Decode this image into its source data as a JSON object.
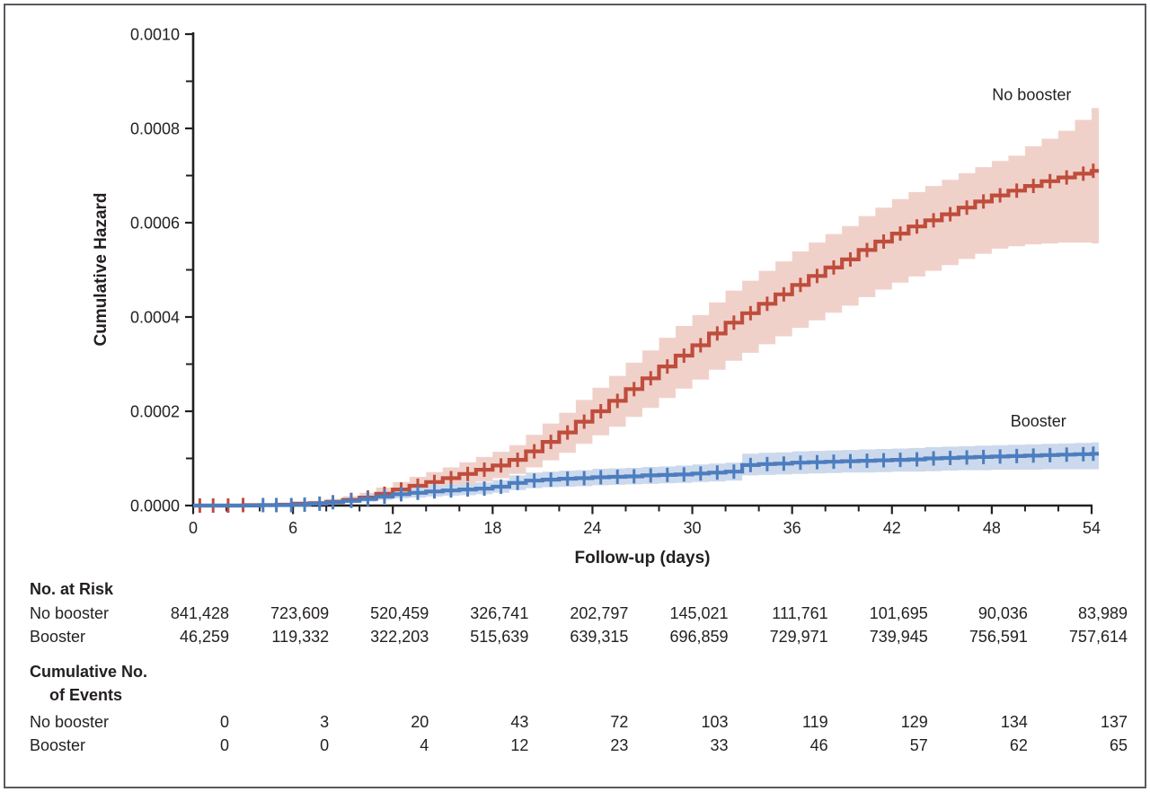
{
  "figure": {
    "y_axis_title": "Cumulative Hazard",
    "x_axis_title": "Follow-up (days)"
  },
  "colors": {
    "no_booster_line": "#bf4d3c",
    "no_booster_band": "#f0d1ca",
    "booster_line": "#4c7dbf",
    "booster_band": "#ccd9ec",
    "axis": "#231f20",
    "frame_border": "#595a5e"
  },
  "chart_data": {
    "type": "line",
    "subtype": "step-cumulative-hazard-with-95CI",
    "title": "",
    "xlabel": "Follow-up (days)",
    "ylabel": "Cumulative Hazard",
    "xlim": [
      0,
      54
    ],
    "ylim": [
      0,
      0.001
    ],
    "grid": false,
    "x_tick_days": [
      0,
      6,
      12,
      18,
      24,
      30,
      36,
      42,
      48,
      54
    ],
    "x_minor_tick_days": [
      2,
      4,
      8,
      10,
      14,
      16,
      20,
      22,
      26,
      28,
      32,
      34,
      38,
      40,
      44,
      46,
      50,
      52
    ],
    "y_tick_values_x1e6": [
      0,
      200,
      400,
      600,
      800,
      1000
    ],
    "y_tick_labels": [
      "0.0000",
      "0.0002",
      "0.0004",
      "0.0006",
      "0.0008",
      "0.0010"
    ],
    "y_minor_tick_values_x1e6": [
      100,
      300,
      500,
      700,
      900
    ],
    "value_unit_note": "hazard values stored as hazard x 1e-6, index = follow-up day 0..54",
    "series": [
      {
        "name": "No booster",
        "line_color": "#bf4d3c",
        "band_color": "#f0d1ca",
        "label_anchor": {
          "day": 50.4,
          "hazard_x1e6": 860
        },
        "hazard_x1e6": [
          0,
          0,
          0,
          1,
          1,
          2,
          4,
          5,
          8,
          12,
          17,
          25,
          34,
          42,
          50,
          58,
          67,
          76,
          85,
          97,
          115,
          135,
          155,
          178,
          200,
          222,
          247,
          270,
          295,
          318,
          340,
          365,
          388,
          408,
          428,
          448,
          468,
          487,
          505,
          522,
          542,
          560,
          577,
          592,
          605,
          618,
          632,
          645,
          658,
          668,
          678,
          688,
          696,
          704,
          710
        ],
        "ci_lower_x1e6": [
          0,
          0,
          0,
          0,
          0,
          1,
          2,
          3,
          4,
          6,
          9,
          14,
          20,
          26,
          32,
          38,
          44,
          51,
          58,
          67,
          81,
          96,
          112,
          131,
          149,
          167,
          188,
          207,
          228,
          248,
          267,
          288,
          307,
          324,
          342,
          359,
          377,
          393,
          409,
          424,
          442,
          458,
          473,
          486,
          498,
          510,
          523,
          534,
          545,
          550,
          554,
          556,
          558,
          558,
          556
        ],
        "ci_upper_x1e6": [
          0,
          0,
          0,
          2,
          3,
          5,
          7,
          10,
          14,
          20,
          27,
          38,
          50,
          61,
          71,
          81,
          92,
          103,
          114,
          128,
          150,
          174,
          197,
          224,
          250,
          275,
          303,
          329,
          356,
          381,
          404,
          431,
          456,
          477,
          498,
          518,
          539,
          558,
          576,
          593,
          614,
          632,
          650,
          665,
          678,
          691,
          705,
          718,
          731,
          742,
          762,
          778,
          795,
          818,
          843
        ],
        "censor_days": [
          0.4,
          1.2,
          2.1,
          3.0,
          9.5,
          10.5,
          11.5,
          12.5,
          13.5,
          14.5,
          15.5,
          16.5,
          17.5,
          18.5,
          19.5,
          20.5,
          21.5,
          22.5,
          23.5,
          24.5,
          25.5,
          26.5,
          27.5,
          28.5,
          29.5,
          30.5,
          31.5,
          32.5,
          33.5,
          34.5,
          35.5,
          36.5,
          37.5,
          38.5,
          39.5,
          40.5,
          41.5,
          42.5,
          43.5,
          44.5,
          45.5,
          46.5,
          47.5,
          48.5,
          49.5,
          50.5,
          51.5,
          52.5,
          53.5,
          54.1
        ]
      },
      {
        "name": "Booster",
        "line_color": "#4c7dbf",
        "band_color": "#ccd9ec",
        "label_anchor": {
          "day": 50.8,
          "hazard_x1e6": 168
        },
        "hazard_x1e6": [
          0,
          0,
          0,
          0,
          1,
          1,
          2,
          4,
          7,
          10,
          14,
          19,
          24,
          27,
          30,
          32,
          34,
          36,
          40,
          48,
          53,
          55,
          57,
          58,
          60,
          61,
          62,
          64,
          65,
          66,
          68,
          70,
          72,
          86,
          88,
          89,
          91,
          92,
          93,
          94,
          95,
          96,
          97,
          98,
          100,
          101,
          102,
          103,
          104,
          105,
          106,
          107,
          108,
          109,
          110
        ],
        "ci_lower_x1e6": [
          0,
          0,
          0,
          0,
          0,
          0,
          1,
          2,
          4,
          6,
          8,
          12,
          15,
          17,
          19,
          21,
          22,
          24,
          27,
          33,
          37,
          39,
          40,
          41,
          43,
          44,
          45,
          46,
          47,
          48,
          50,
          51,
          53,
          64,
          65,
          66,
          67,
          68,
          69,
          70,
          70,
          71,
          72,
          72,
          73,
          74,
          75,
          75,
          76,
          76,
          76,
          77,
          77,
          77,
          77
        ],
        "ci_upper_x1e6": [
          0,
          0,
          0,
          0,
          2,
          3,
          4,
          7,
          11,
          16,
          21,
          28,
          34,
          38,
          42,
          44,
          46,
          49,
          54,
          64,
          70,
          72,
          74,
          75,
          78,
          79,
          80,
          82,
          83,
          85,
          87,
          89,
          91,
          110,
          112,
          113,
          115,
          116,
          117,
          118,
          119,
          120,
          121,
          122,
          124,
          125,
          126,
          127,
          128,
          129,
          130,
          131,
          132,
          133,
          134
        ],
        "censor_days": [
          4.2,
          5.0,
          5.9,
          6.7,
          7.6,
          8.4,
          9.5,
          10.5,
          11.5,
          12.5,
          13.5,
          14.5,
          15.5,
          16.5,
          17.5,
          18.5,
          19.5,
          20.5,
          21.5,
          22.5,
          23.5,
          24.5,
          25.5,
          26.5,
          27.5,
          28.5,
          29.5,
          30.5,
          31.5,
          32.5,
          33.5,
          34.5,
          35.5,
          36.5,
          37.5,
          38.5,
          39.5,
          40.5,
          41.5,
          42.5,
          43.5,
          44.5,
          45.5,
          46.5,
          47.5,
          48.5,
          49.5,
          50.5,
          51.5,
          52.5,
          53.5,
          54.1
        ]
      }
    ]
  },
  "risk_table": {
    "header": "No. at Risk",
    "rows": [
      {
        "label": "No booster",
        "values": [
          "841,428",
          "723,609",
          "520,459",
          "326,741",
          "202,797",
          "145,021",
          "111,761",
          "101,695",
          "90,036",
          "83,989"
        ]
      },
      {
        "label": "Booster",
        "values": [
          "46,259",
          "119,332",
          "322,203",
          "515,639",
          "639,315",
          "696,859",
          "729,971",
          "739,945",
          "756,591",
          "757,614"
        ]
      }
    ]
  },
  "events_table": {
    "header_line1": "Cumulative No.",
    "header_line2": "of Events",
    "rows": [
      {
        "label": "No booster",
        "values": [
          "0",
          "3",
          "20",
          "43",
          "72",
          "103",
          "119",
          "129",
          "134",
          "137"
        ]
      },
      {
        "label": "Booster",
        "values": [
          "0",
          "0",
          "4",
          "12",
          "23",
          "33",
          "46",
          "57",
          "62",
          "65"
        ]
      }
    ]
  }
}
